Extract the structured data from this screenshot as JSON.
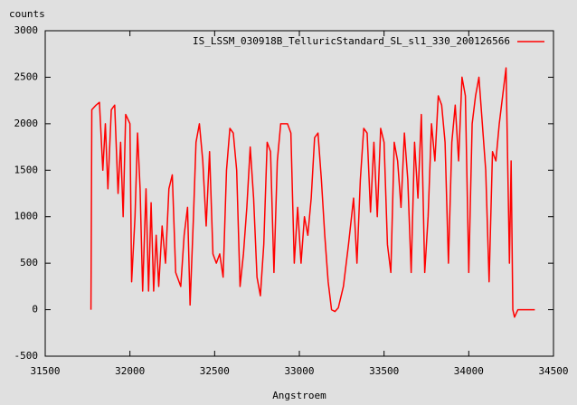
{
  "chart_data": {
    "type": "line",
    "y_label": "counts",
    "x_label": "Angstroem",
    "xlim": [
      31500,
      34500
    ],
    "xticks": [
      31500,
      32000,
      32500,
      33000,
      33500,
      34000,
      34500
    ],
    "ylim": [
      -500,
      3000
    ],
    "yticks": [
      -500,
      0,
      500,
      1000,
      1500,
      2000,
      2500,
      3000
    ],
    "grid": false,
    "legend": "upper right",
    "x": [
      31770,
      31775,
      31800,
      31820,
      31840,
      31855,
      31870,
      31890,
      31910,
      31930,
      31945,
      31960,
      31975,
      32000,
      32010,
      32030,
      32045,
      32060,
      32075,
      32095,
      32110,
      32125,
      32140,
      32155,
      32170,
      32190,
      32210,
      32230,
      32250,
      32270,
      32300,
      32320,
      32340,
      32355,
      32375,
      32390,
      32410,
      32430,
      32450,
      32470,
      32490,
      32510,
      32530,
      32550,
      32570,
      32590,
      32610,
      32630,
      32650,
      32670,
      32690,
      32710,
      32730,
      32750,
      32770,
      32790,
      32810,
      32830,
      32850,
      32870,
      32890,
      32910,
      32930,
      32950,
      32970,
      32990,
      33010,
      33030,
      33050,
      33070,
      33090,
      33110,
      33130,
      33150,
      33170,
      33190,
      33210,
      33230,
      33260,
      33290,
      33320,
      33340,
      33360,
      33380,
      33400,
      33420,
      33440,
      33460,
      33480,
      33500,
      33520,
      33540,
      33560,
      33580,
      33600,
      33620,
      33640,
      33660,
      33680,
      33700,
      33720,
      33740,
      33760,
      33780,
      33800,
      33820,
      33840,
      33860,
      33880,
      33900,
      33920,
      33940,
      33960,
      33980,
      34000,
      34020,
      34040,
      34060,
      34080,
      34100,
      34120,
      34140,
      34160,
      34180,
      34200,
      34220,
      34240,
      34250,
      34260,
      34270,
      34290,
      34390
    ],
    "series": [
      {
        "name": "IS_LSSM_030918B_TelluricStandard_SL_sl1_330_200126566",
        "color": "#ff0000",
        "values": [
          0,
          2150,
          2200,
          2230,
          1500,
          2000,
          1300,
          2150,
          2200,
          1250,
          1800,
          1000,
          2100,
          2000,
          300,
          1000,
          1900,
          1300,
          200,
          1300,
          200,
          1150,
          200,
          800,
          250,
          900,
          500,
          1300,
          1450,
          400,
          250,
          800,
          1100,
          50,
          1000,
          1800,
          2000,
          1600,
          900,
          1700,
          600,
          500,
          600,
          350,
          1500,
          1950,
          1900,
          1500,
          250,
          600,
          1100,
          1750,
          1200,
          350,
          150,
          700,
          1800,
          1700,
          400,
          1600,
          2000,
          2000,
          2000,
          1900,
          500,
          1100,
          500,
          1000,
          800,
          1200,
          1850,
          1900,
          1400,
          800,
          300,
          0,
          -20,
          20,
          250,
          700,
          1200,
          500,
          1400,
          1950,
          1900,
          1050,
          1800,
          1000,
          1950,
          1800,
          700,
          400,
          1800,
          1600,
          1100,
          1900,
          1400,
          400,
          1800,
          1200,
          2100,
          400,
          1000,
          2000,
          1600,
          2300,
          2200,
          1800,
          500,
          1800,
          2200,
          1600,
          2500,
          2300,
          400,
          2000,
          2300,
          2500,
          2000,
          1500,
          300,
          1700,
          1600,
          2000,
          2300,
          2600,
          500,
          1600,
          0,
          -80,
          0,
          0
        ]
      }
    ]
  }
}
